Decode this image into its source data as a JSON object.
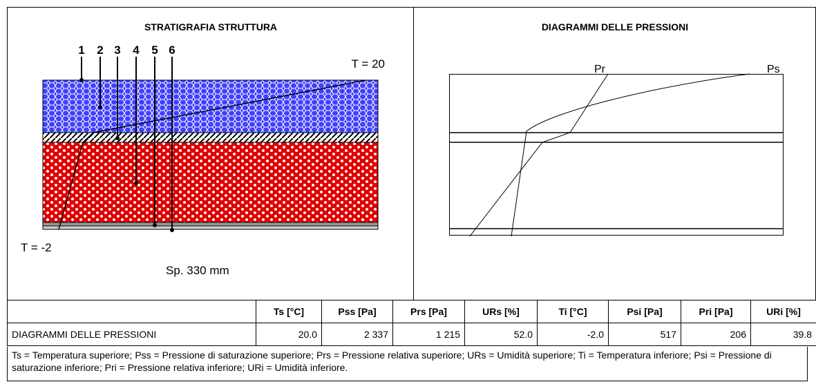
{
  "left_panel": {
    "title": "STRATIGRAFIA STRUTTURA",
    "layer_labels": [
      "1",
      "2",
      "3",
      "4",
      "5",
      "6"
    ],
    "top_temp": "T = 20",
    "bottom_temp": "T = -2",
    "thickness": "Sp. 330 mm"
  },
  "right_panel": {
    "title": "DIAGRAMMI DELLE PRESSIONI",
    "curve_labels": [
      "Pr",
      "Ps"
    ]
  },
  "table": {
    "headers": [
      "Ts [°C]",
      "Pss [Pa]",
      "Prs [Pa]",
      "URs [%]",
      "Ti [°C]",
      "Psi [Pa]",
      "Pri [Pa]",
      "URi [%]"
    ],
    "rows": [
      [
        "DIAGRAMMI DELLE PRESSIONI",
        "20.0",
        "2 337",
        "1 215",
        "52.0",
        "-2.0",
        "517",
        "206",
        "39.8"
      ]
    ]
  },
  "footnote": "Ts = Temperatura superiore; Pss = Pressione di saturazione superiore; Prs = Pressione relativa superiore; URs = Umidità superiore; Ti = Temperatura inferiore; Psi = Pressione di saturazione inferiore; Pri = Pressione relativa inferiore; URi = Umidità inferiore."
}
